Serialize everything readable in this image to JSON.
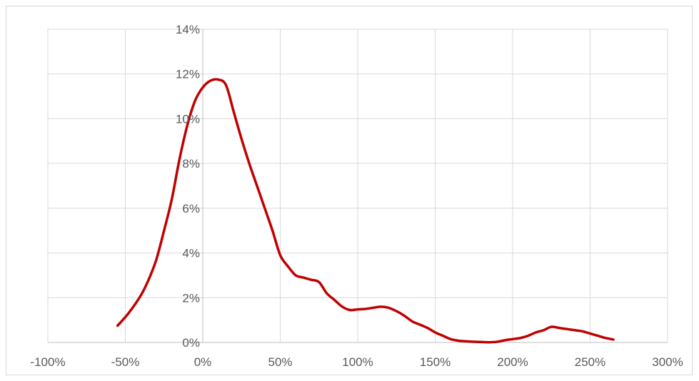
{
  "chart_data": {
    "type": "line",
    "title": "",
    "xlabel": "",
    "ylabel": "",
    "xlim": [
      -1.0,
      3.0
    ],
    "ylim": [
      0,
      0.14
    ],
    "x_ticks": [
      -1.0,
      -0.5,
      0,
      0.5,
      1.0,
      1.5,
      2.0,
      2.5,
      3.0
    ],
    "x_tick_labels": [
      "-100%",
      "-50%",
      "0%",
      "50%",
      "100%",
      "150%",
      "200%",
      "250%",
      "300%"
    ],
    "y_ticks": [
      0,
      0.02,
      0.04,
      0.06,
      0.08,
      0.1,
      0.12,
      0.14
    ],
    "y_tick_labels": [
      "0%",
      "2%",
      "4%",
      "6%",
      "8%",
      "10%",
      "12%",
      "14%"
    ],
    "grid": true,
    "legend": "none",
    "line_color": "#c00000",
    "series": [
      {
        "name": "",
        "x": [
          -0.55,
          -0.48,
          -0.4,
          -0.35,
          -0.3,
          -0.25,
          -0.2,
          -0.15,
          -0.1,
          -0.05,
          0.0,
          0.05,
          0.1,
          0.15,
          0.2,
          0.25,
          0.3,
          0.35,
          0.4,
          0.45,
          0.5,
          0.55,
          0.6,
          0.65,
          0.7,
          0.75,
          0.8,
          0.85,
          0.9,
          0.95,
          1.0,
          1.05,
          1.1,
          1.15,
          1.2,
          1.25,
          1.3,
          1.35,
          1.4,
          1.45,
          1.5,
          1.55,
          1.6,
          1.65,
          1.7,
          1.75,
          1.8,
          1.85,
          1.9,
          1.95,
          2.0,
          2.05,
          2.1,
          2.15,
          2.2,
          2.25,
          2.3,
          2.35,
          2.4,
          2.45,
          2.5,
          2.55,
          2.6,
          2.65
        ],
        "values": [
          0.0075,
          0.013,
          0.021,
          0.028,
          0.037,
          0.05,
          0.064,
          0.082,
          0.097,
          0.108,
          0.114,
          0.117,
          0.1175,
          0.115,
          0.103,
          0.091,
          0.08,
          0.07,
          0.06,
          0.05,
          0.039,
          0.034,
          0.03,
          0.029,
          0.028,
          0.027,
          0.022,
          0.019,
          0.016,
          0.0145,
          0.0148,
          0.015,
          0.0155,
          0.016,
          0.0155,
          0.014,
          0.012,
          0.0095,
          0.008,
          0.0065,
          0.0045,
          0.003,
          0.0015,
          0.0008,
          0.0005,
          0.0003,
          0.0002,
          0.0001,
          0.0003,
          0.001,
          0.0015,
          0.002,
          0.003,
          0.0045,
          0.0055,
          0.007,
          0.0065,
          0.006,
          0.0055,
          0.005,
          0.004,
          0.003,
          0.002,
          0.0013
        ]
      }
    ]
  }
}
